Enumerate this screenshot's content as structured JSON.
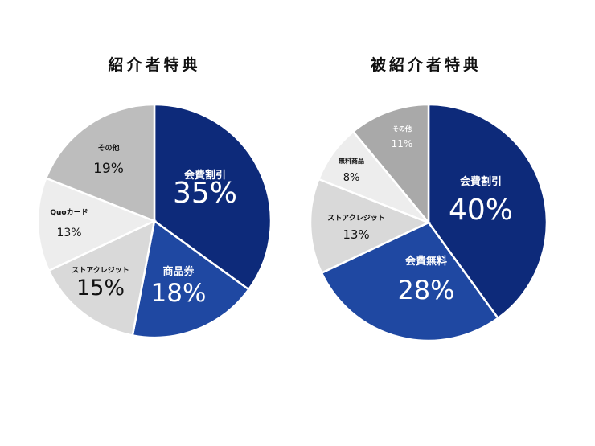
{
  "chart_data": [
    {
      "type": "pie",
      "title": "紹介者特典",
      "slices": [
        {
          "label": "会費割引",
          "value": 35,
          "display": "35%",
          "color": "#0d2a7a"
        },
        {
          "label": "商品券",
          "value": 18,
          "display": "18%",
          "color": "#1f48a2"
        },
        {
          "label": "ストアクレジット",
          "value": 15,
          "display": "15%",
          "color": "#d9d9d9"
        },
        {
          "label": "Quoカード",
          "value": 13,
          "display": "13%",
          "color": "#ededed"
        },
        {
          "label": "その他",
          "value": 19,
          "display": "19%",
          "color": "#bdbdbd"
        }
      ]
    },
    {
      "type": "pie",
      "title": "被紹介者特典",
      "slices": [
        {
          "label": "会費割引",
          "value": 40,
          "display": "40%",
          "color": "#0d2a7a"
        },
        {
          "label": "会費無料",
          "value": 28,
          "display": "28%",
          "color": "#1f48a2"
        },
        {
          "label": "ストアクレジット",
          "value": 13,
          "display": "13%",
          "color": "#d9d9d9"
        },
        {
          "label": "無料商品",
          "value": 8,
          "display": "8%",
          "color": "#ededed"
        },
        {
          "label": "その他",
          "value": 11,
          "display": "11%",
          "color": "#a9a9a9"
        }
      ]
    }
  ]
}
